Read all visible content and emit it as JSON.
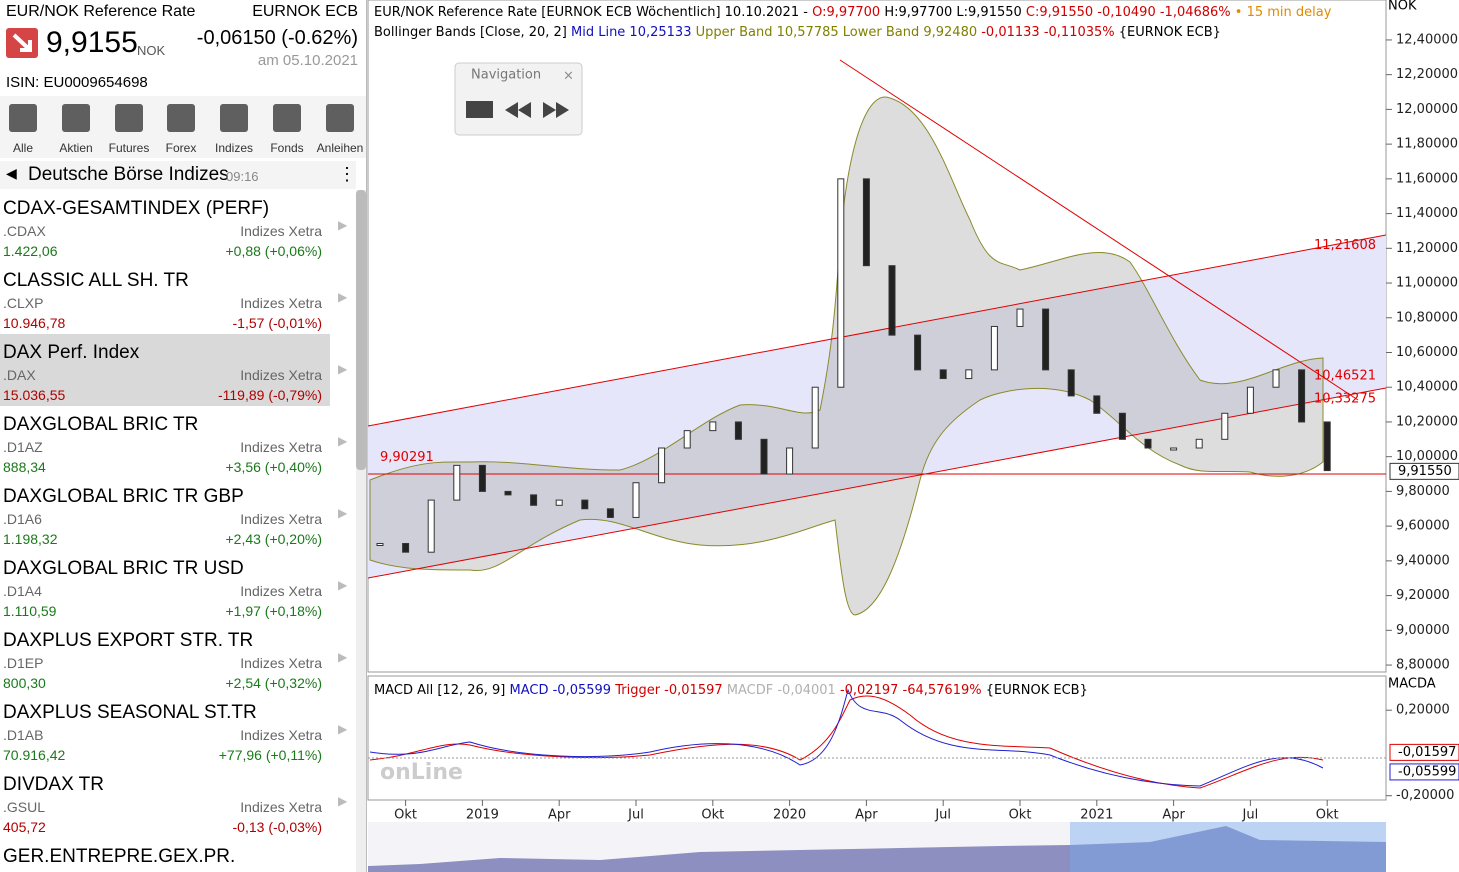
{
  "instrument": {
    "name": "EUR/NOK Reference Rate",
    "symbol": "EURNOK ECB",
    "price": "9,9155",
    "currency": "NOK",
    "change": "-0,06150 (-0.62%)",
    "date": "am 05.10.2021",
    "isin": "ISIN: EU0009654698"
  },
  "toolbar": [
    "Alle",
    "Aktien",
    "Futures",
    "Forex",
    "Indizes",
    "Fonds",
    "Anleihen"
  ],
  "section": {
    "title": "Deutsche Börse Indizes",
    "time": "09:16"
  },
  "list": [
    {
      "name": "CDAX-GESAMTINDEX (PERF)",
      "code": ".CDAX",
      "exchange": "Indizes Xetra",
      "value": "1.422,06",
      "change": "+0,88 (+0,06%)",
      "color": "#1a7a1a"
    },
    {
      "name": "CLASSIC ALL SH. TR",
      "code": ".CLXP",
      "exchange": "Indizes Xetra",
      "value": "10.946,78",
      "change": "-1,57 (-0,01%)",
      "color": "#b00000"
    },
    {
      "name": "DAX Perf. Index",
      "code": ".DAX",
      "exchange": "Indizes Xetra",
      "value": "15.036,55",
      "change": "-119,89 (-0,79%)",
      "color": "#b00000",
      "selected": true
    },
    {
      "name": "DAXGLOBAL BRIC TR",
      "code": ".D1AZ",
      "exchange": "Indizes Xetra",
      "value": "888,34",
      "change": "+3,56 (+0,40%)",
      "color": "#1a7a1a"
    },
    {
      "name": "DAXGLOBAL BRIC TR GBP",
      "code": ".D1A6",
      "exchange": "Indizes Xetra",
      "value": "1.198,32",
      "change": "+2,43 (+0,20%)",
      "color": "#1a7a1a"
    },
    {
      "name": "DAXGLOBAL BRIC TR USD",
      "code": ".D1A4",
      "exchange": "Indizes Xetra",
      "value": "1.110,59",
      "change": "+1,97 (+0,18%)",
      "color": "#1a7a1a"
    },
    {
      "name": "DAXPLUS EXPORT STR. TR",
      "code": ".D1EP",
      "exchange": "Indizes Xetra",
      "value": "800,30",
      "change": "+2,54 (+0,32%)",
      "color": "#1a7a1a"
    },
    {
      "name": "DAXPLUS SEASONAL ST.TR",
      "code": ".D1AB",
      "exchange": "Indizes Xetra",
      "value": "70.916,42",
      "change": "+77,96 (+0,11%)",
      "color": "#1a7a1a"
    },
    {
      "name": "DIVDAX TR",
      "code": ".GSUL",
      "exchange": "Indizes Xetra",
      "value": "405,72",
      "change": "-0,13 (-0,03%)",
      "color": "#b00000"
    },
    {
      "name": "GER.ENTREPRE.GEX.PR.",
      "code": null,
      "exchange": null,
      "value": null,
      "change": null,
      "color": "#1a7a1a"
    }
  ],
  "chart_data": {
    "type": "candle",
    "header_lines": [
      [
        {
          "text": "EUR/NOK Reference Rate [EURNOK ECB Wöchentlich] 10.10.2021 - ",
          "color": "#000000"
        },
        {
          "text": "O:9,97700",
          "color": "#d00000"
        },
        {
          "text": " H:9,97700 L:9,91550 ",
          "color": "#000000"
        },
        {
          "text": "C:9,91550 -0,10490 -1,04686%",
          "color": "#d00000"
        },
        {
          "text": " • 15 min delay",
          "color": "#e08a00"
        }
      ],
      [
        {
          "text": "Bollinger Bands [Close, 20, 2] ",
          "color": "#000000"
        },
        {
          "text": "Mid Line 10,25133",
          "color": "#1010c0"
        },
        {
          "text": " Upper Band 10,57785 Lower Band 9,92480",
          "color": "#808000"
        },
        {
          "text": " -0,01133 -0,11035%",
          "color": "#d00000"
        },
        {
          "text": " {EURNOK ECB}",
          "color": "#000000"
        }
      ]
    ],
    "macd_line": [
      {
        "text": "MACD All [12, 26, 9] ",
        "color": "#000000"
      },
      {
        "text": "MACD -0,05599",
        "color": "#1010c0"
      },
      {
        "text": " Trigger -0,01597",
        "color": "#d00000"
      },
      {
        "text": " MACDF -0,04001",
        "color": "#b0b0b0"
      },
      {
        "text": " -0,02197 -64,57619%",
        "color": "#d00000"
      },
      {
        "text": " {EURNOK ECB}",
        "color": "#000000"
      }
    ],
    "navigation": "Navigation",
    "y_unit": "NOK",
    "macd_unit": "MACDA",
    "categories": [
      null,
      "Okt",
      null,
      null,
      "2019",
      null,
      null,
      "Apr",
      null,
      null,
      "Jul",
      null,
      null,
      "Okt",
      null,
      null,
      "2020",
      null,
      null,
      "Apr",
      null,
      null,
      "Jul",
      null,
      null,
      "Okt",
      null,
      null,
      "2021",
      null,
      null,
      "Apr",
      null,
      null,
      "Jul",
      null,
      null,
      "Okt"
    ],
    "values": [
      9.5,
      9.45,
      9.75,
      9.95,
      9.8,
      9.78,
      9.72,
      9.75,
      9.7,
      9.65,
      9.85,
      10.05,
      10.15,
      10.2,
      10.1,
      9.9,
      10.05,
      10.4,
      11.6,
      11.1,
      10.7,
      10.5,
      10.45,
      10.5,
      10.75,
      10.85,
      10.5,
      10.35,
      10.25,
      10.1,
      10.05,
      10.05,
      10.1,
      10.25,
      10.4,
      10.5,
      10.2,
      9.92
    ],
    "color": "#333333",
    "ylim": [
      8.76,
      12.63
    ],
    "yticks": [
      {
        "value": 8.8,
        "label": "8,80000"
      },
      {
        "value": 9,
        "label": "9,00000"
      },
      {
        "value": 9.2,
        "label": "9,20000"
      },
      {
        "value": 9.4,
        "label": "9,40000"
      },
      {
        "value": 9.6,
        "label": "9,60000"
      },
      {
        "value": 9.8,
        "label": "9,80000"
      },
      {
        "value": 10,
        "label": "10,00000"
      },
      {
        "value": 10.2,
        "label": "10,20000"
      },
      {
        "value": 10.4,
        "label": "10,40000"
      },
      {
        "value": 10.6,
        "label": "10,60000"
      },
      {
        "value": 10.8,
        "label": "10,80000"
      },
      {
        "value": 11,
        "label": "11,00000"
      },
      {
        "value": 11.2,
        "label": "11,20000"
      },
      {
        "value": 11.4,
        "label": "11,40000"
      },
      {
        "value": 11.6,
        "label": "11,60000"
      },
      {
        "value": 11.8,
        "label": "11,80000"
      },
      {
        "value": 12,
        "label": "12,00000"
      },
      {
        "value": 12.2,
        "label": "12,20000"
      },
      {
        "value": 12.4,
        "label": "12,40000"
      }
    ],
    "last_price": {
      "value": 9.9155,
      "label": "9,91550"
    },
    "annotations": [
      {
        "value": 11.21608,
        "label": "11,21608"
      },
      {
        "value": 10.46521,
        "label": "10,46521"
      },
      {
        "value": 10.33275,
        "label": "10,33275"
      },
      {
        "value": 9.90291,
        "label": "9,90291"
      }
    ],
    "macd_ylim": [
      -0.22,
      0.36
    ],
    "macd_yticks": [
      {
        "value": 0.2,
        "label": "0,20000"
      },
      {
        "value": -0.2,
        "label": "-0,20000"
      }
    ],
    "macd_marks": [
      {
        "value": -0.01597,
        "label": "-0,01597"
      },
      {
        "value": -0.05599,
        "label": "-0,05599"
      }
    ]
  }
}
